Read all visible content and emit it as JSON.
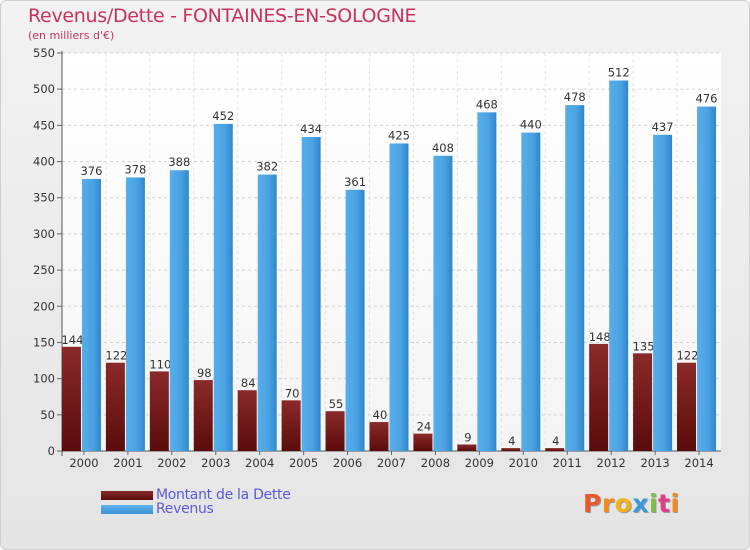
{
  "title": "Revenus/Dette - FONTAINES-EN-SOLOGNE",
  "subtitle": "(en milliers d'€)",
  "legend": {
    "debt_label": "Montant de la Dette",
    "revenue_label": "Revenus"
  },
  "logo": {
    "letters": [
      "P",
      "r",
      "o",
      "x",
      "i",
      "t",
      "i"
    ]
  },
  "colors": {
    "title": "#c8325a",
    "debt": "#7a1a1a",
    "revenue": "#4ba3e3",
    "legend_text": "#5b5bd6",
    "logo": [
      "#e7582b",
      "#f28c1d",
      "#f2b21d",
      "#3a9ad9",
      "#7fbf3f",
      "#e23b8a",
      "#f28c1d"
    ]
  },
  "chart_data": {
    "type": "bar",
    "title": "Revenus/Dette - FONTAINES-EN-SOLOGNE",
    "subtitle": "(en milliers d'€)",
    "categories": [
      "2000",
      "2001",
      "2002",
      "2003",
      "2004",
      "2005",
      "2006",
      "2007",
      "2008",
      "2009",
      "2010",
      "2011",
      "2012",
      "2013",
      "2014"
    ],
    "series": [
      {
        "name": "Montant de la Dette",
        "values": [
          144,
          122,
          110,
          98,
          84,
          70,
          55,
          40,
          24,
          9,
          4,
          4,
          148,
          135,
          122
        ]
      },
      {
        "name": "Revenus",
        "values": [
          376,
          378,
          388,
          452,
          382,
          434,
          361,
          425,
          408,
          468,
          440,
          478,
          512,
          437,
          476
        ]
      }
    ],
    "ylim": [
      0,
      550
    ],
    "yticks": [
      0,
      50,
      100,
      150,
      200,
      250,
      300,
      350,
      400,
      450,
      500,
      550
    ],
    "grid": true,
    "legend_position": "bottom-left"
  }
}
